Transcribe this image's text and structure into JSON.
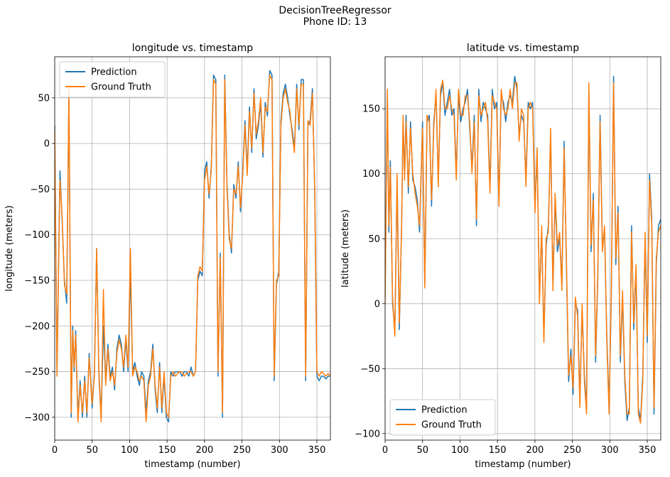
{
  "figure": {
    "suptitle_line1": "DecisionTreeRegressor",
    "suptitle_line2": "Phone ID: 13"
  },
  "colors": {
    "prediction": "#1f77b4",
    "ground_truth": "#ff7f0e",
    "grid": "#b0b0b0"
  },
  "chart_data": [
    {
      "type": "line",
      "title": "longitude vs. timestamp",
      "xlabel": "timestamp (number)",
      "ylabel": "longitude (meters)",
      "xlim": [
        0,
        368
      ],
      "ylim": [
        -325,
        95
      ],
      "xticks": [
        0,
        50,
        100,
        150,
        200,
        250,
        300,
        350
      ],
      "yticks": [
        -300,
        -250,
        -200,
        -150,
        -100,
        -50,
        0,
        50
      ],
      "grid": true,
      "legend": "upper left",
      "series": [
        {
          "name": "Prediction",
          "color": "#1f77b4",
          "x": [
            0,
            3,
            5,
            7,
            10,
            13,
            16,
            19,
            22,
            24,
            26,
            28,
            31,
            34,
            37,
            40,
            43,
            46,
            50,
            53,
            56,
            59,
            62,
            65,
            68,
            71,
            74,
            77,
            80,
            83,
            86,
            89,
            92,
            95,
            98,
            101,
            104,
            107,
            110,
            113,
            116,
            119,
            122,
            125,
            128,
            131,
            134,
            137,
            140,
            143,
            146,
            149,
            152,
            155,
            158,
            161,
            164,
            167,
            170,
            173,
            176,
            179,
            182,
            185,
            188,
            191,
            194,
            197,
            200,
            203,
            206,
            209,
            212,
            215,
            218,
            221,
            224,
            227,
            230,
            233,
            236,
            239,
            242,
            245,
            248,
            251,
            254,
            257,
            260,
            263,
            266,
            269,
            272,
            275,
            278,
            281,
            284,
            287,
            290,
            293,
            296,
            299,
            302,
            305,
            308,
            311,
            314,
            317,
            320,
            323,
            326,
            329,
            332,
            335,
            338,
            341,
            344,
            347,
            350,
            353,
            356,
            359,
            362,
            365,
            368
          ],
          "y": [
            20,
            -250,
            -140,
            -30,
            -85,
            -150,
            -175,
            55,
            -300,
            -200,
            -250,
            -205,
            -300,
            -260,
            -300,
            -255,
            -300,
            -230,
            -290,
            -250,
            -115,
            -250,
            -300,
            -200,
            -260,
            -220,
            -255,
            -245,
            -270,
            -225,
            -210,
            -220,
            -250,
            -215,
            -250,
            -140,
            -250,
            -240,
            -255,
            -265,
            -250,
            -255,
            -295,
            -260,
            -250,
            -220,
            -270,
            -295,
            -240,
            -295,
            -255,
            -300,
            -305,
            -250,
            -255,
            -250,
            -250,
            -250,
            -255,
            -250,
            -250,
            -255,
            -245,
            -255,
            -250,
            -150,
            -140,
            -145,
            -30,
            -20,
            -60,
            -25,
            75,
            70,
            -255,
            -120,
            -300,
            75,
            -45,
            -100,
            -120,
            -45,
            -60,
            -20,
            -75,
            -30,
            25,
            -30,
            40,
            -10,
            60,
            5,
            20,
            45,
            -15,
            45,
            30,
            80,
            75,
            -260,
            -155,
            -140,
            25,
            55,
            65,
            50,
            30,
            15,
            -5,
            65,
            15,
            70,
            70,
            -260,
            20,
            25,
            60,
            -50,
            -255,
            -260,
            -255,
            -255,
            -258,
            -255,
            -255
          ]
        },
        {
          "name": "Ground Truth",
          "color": "#ff7f0e",
          "x": [
            0,
            3,
            5,
            7,
            10,
            13,
            16,
            19,
            22,
            24,
            26,
            28,
            31,
            34,
            37,
            40,
            43,
            46,
            50,
            53,
            56,
            59,
            62,
            65,
            68,
            71,
            74,
            77,
            80,
            83,
            86,
            89,
            92,
            95,
            98,
            101,
            104,
            107,
            110,
            113,
            116,
            119,
            122,
            125,
            128,
            131,
            134,
            137,
            140,
            143,
            146,
            149,
            152,
            155,
            158,
            161,
            164,
            167,
            170,
            173,
            176,
            179,
            182,
            185,
            188,
            191,
            194,
            197,
            200,
            203,
            206,
            209,
            212,
            215,
            218,
            221,
            224,
            227,
            230,
            233,
            236,
            239,
            242,
            245,
            248,
            251,
            254,
            257,
            260,
            263,
            266,
            269,
            272,
            275,
            278,
            281,
            284,
            287,
            290,
            293,
            296,
            299,
            302,
            305,
            308,
            311,
            314,
            317,
            320,
            323,
            326,
            329,
            332,
            335,
            338,
            341,
            344,
            347,
            350,
            353,
            356,
            359,
            362,
            365,
            368
          ],
          "y": [
            15,
            -255,
            -145,
            -40,
            -80,
            -155,
            -165,
            60,
            -295,
            -205,
            -245,
            -210,
            -305,
            -265,
            -295,
            -260,
            -295,
            -235,
            -285,
            -255,
            -115,
            -255,
            -305,
            -160,
            -265,
            -225,
            -260,
            -250,
            -265,
            -230,
            -215,
            -225,
            -245,
            -210,
            -245,
            -115,
            -255,
            -245,
            -250,
            -260,
            -255,
            -260,
            -305,
            -265,
            -255,
            -225,
            -265,
            -290,
            -245,
            -290,
            -250,
            -295,
            -300,
            -255,
            -250,
            -255,
            -252,
            -250,
            -250,
            -255,
            -252,
            -250,
            -250,
            -255,
            -250,
            -145,
            -135,
            -140,
            -40,
            -25,
            -55,
            -30,
            70,
            65,
            -250,
            -125,
            -295,
            70,
            -50,
            -105,
            -115,
            -50,
            -55,
            -25,
            -70,
            -35,
            20,
            -35,
            35,
            -5,
            55,
            10,
            25,
            50,
            -10,
            40,
            35,
            75,
            70,
            -255,
            -150,
            -145,
            20,
            50,
            60,
            45,
            35,
            10,
            -10,
            60,
            20,
            65,
            65,
            -255,
            25,
            20,
            55,
            -45,
            -250,
            -255,
            -250,
            -252,
            -255,
            -252,
            -255
          ]
        }
      ]
    },
    {
      "type": "line",
      "title": "latitude vs. timestamp",
      "xlabel": "timestamp (number)",
      "ylabel": "latitude (meters)",
      "xlim": [
        0,
        368
      ],
      "ylim": [
        -105,
        190
      ],
      "xticks": [
        0,
        50,
        100,
        150,
        200,
        250,
        300,
        350
      ],
      "yticks": [
        -100,
        -50,
        0,
        50,
        100,
        150
      ],
      "grid": true,
      "legend": "lower left",
      "series": [
        {
          "name": "Prediction",
          "color": "#1f77b4",
          "x": [
            0,
            3,
            5,
            7,
            10,
            13,
            16,
            19,
            22,
            24,
            26,
            28,
            31,
            34,
            37,
            40,
            43,
            46,
            50,
            53,
            56,
            59,
            62,
            65,
            68,
            71,
            74,
            77,
            80,
            83,
            86,
            89,
            92,
            95,
            98,
            101,
            104,
            107,
            110,
            113,
            116,
            119,
            122,
            125,
            128,
            131,
            134,
            137,
            140,
            143,
            146,
            149,
            152,
            155,
            158,
            161,
            164,
            167,
            170,
            173,
            176,
            179,
            182,
            185,
            188,
            191,
            194,
            197,
            200,
            203,
            206,
            209,
            212,
            215,
            218,
            221,
            224,
            227,
            230,
            233,
            236,
            239,
            242,
            245,
            248,
            251,
            254,
            257,
            260,
            263,
            266,
            269,
            272,
            275,
            278,
            281,
            284,
            287,
            290,
            293,
            296,
            299,
            302,
            305,
            308,
            311,
            314,
            317,
            320,
            323,
            326,
            329,
            332,
            335,
            338,
            341,
            344,
            347,
            350,
            353,
            356,
            359,
            362,
            365,
            368
          ],
          "y": [
            5,
            160,
            55,
            110,
            0,
            -20,
            95,
            -20,
            60,
            140,
            100,
            145,
            85,
            140,
            95,
            90,
            80,
            55,
            140,
            15,
            140,
            145,
            75,
            140,
            160,
            95,
            160,
            170,
            145,
            155,
            165,
            145,
            150,
            100,
            160,
            140,
            150,
            155,
            165,
            135,
            105,
            145,
            60,
            165,
            140,
            155,
            150,
            145,
            90,
            165,
            150,
            155,
            80,
            160,
            155,
            140,
            155,
            160,
            155,
            175,
            165,
            130,
            145,
            140,
            95,
            155,
            150,
            155,
            75,
            115,
            5,
            55,
            -25,
            45,
            60,
            130,
            15,
            80,
            40,
            50,
            15,
            125,
            30,
            -60,
            -35,
            -70,
            0,
            -5,
            -75,
            -5,
            -55,
            -80,
            165,
            40,
            85,
            -45,
            20,
            145,
            45,
            55,
            -25,
            -80,
            5,
            175,
            30,
            75,
            -45,
            5,
            -60,
            -90,
            -80,
            60,
            -20,
            25,
            -80,
            -90,
            -55,
            50,
            -30,
            100,
            65,
            -85,
            30,
            60,
            65
          ]
        },
        {
          "name": "Ground Truth",
          "color": "#ff7f0e",
          "x": [
            0,
            3,
            5,
            7,
            10,
            13,
            16,
            19,
            22,
            24,
            26,
            28,
            31,
            34,
            37,
            40,
            43,
            46,
            50,
            53,
            56,
            59,
            62,
            65,
            68,
            71,
            74,
            77,
            80,
            83,
            86,
            89,
            92,
            95,
            98,
            101,
            104,
            107,
            110,
            113,
            116,
            119,
            122,
            125,
            128,
            131,
            134,
            137,
            140,
            143,
            146,
            149,
            152,
            155,
            158,
            161,
            164,
            167,
            170,
            173,
            176,
            179,
            182,
            185,
            188,
            191,
            194,
            197,
            200,
            203,
            206,
            209,
            212,
            215,
            218,
            221,
            224,
            227,
            230,
            233,
            236,
            239,
            242,
            245,
            248,
            251,
            254,
            257,
            260,
            263,
            266,
            269,
            272,
            275,
            278,
            281,
            284,
            287,
            290,
            293,
            296,
            299,
            302,
            305,
            308,
            311,
            314,
            317,
            320,
            323,
            326,
            329,
            332,
            335,
            338,
            341,
            344,
            347,
            350,
            353,
            356,
            359,
            362,
            365,
            368
          ],
          "y": [
            0,
            165,
            60,
            105,
            5,
            -25,
            100,
            -15,
            55,
            145,
            95,
            140,
            90,
            135,
            100,
            85,
            75,
            60,
            135,
            12,
            145,
            140,
            80,
            135,
            165,
            90,
            165,
            172,
            150,
            150,
            160,
            150,
            145,
            95,
            165,
            145,
            145,
            160,
            160,
            140,
            100,
            140,
            65,
            160,
            145,
            150,
            155,
            140,
            85,
            160,
            155,
            150,
            75,
            165,
            150,
            145,
            150,
            165,
            150,
            170,
            170,
            125,
            150,
            145,
            90,
            150,
            155,
            150,
            70,
            120,
            0,
            60,
            -30,
            50,
            55,
            135,
            10,
            85,
            45,
            55,
            10,
            120,
            35,
            -55,
            -40,
            -65,
            5,
            -10,
            -80,
            0,
            -60,
            -85,
            170,
            45,
            80,
            -40,
            25,
            140,
            40,
            60,
            -30,
            -85,
            10,
            170,
            35,
            70,
            -40,
            10,
            -55,
            -85,
            -85,
            55,
            -15,
            30,
            -85,
            -92,
            -60,
            55,
            -25,
            95,
            60,
            -80,
            35,
            55,
            60
          ]
        }
      ]
    }
  ]
}
